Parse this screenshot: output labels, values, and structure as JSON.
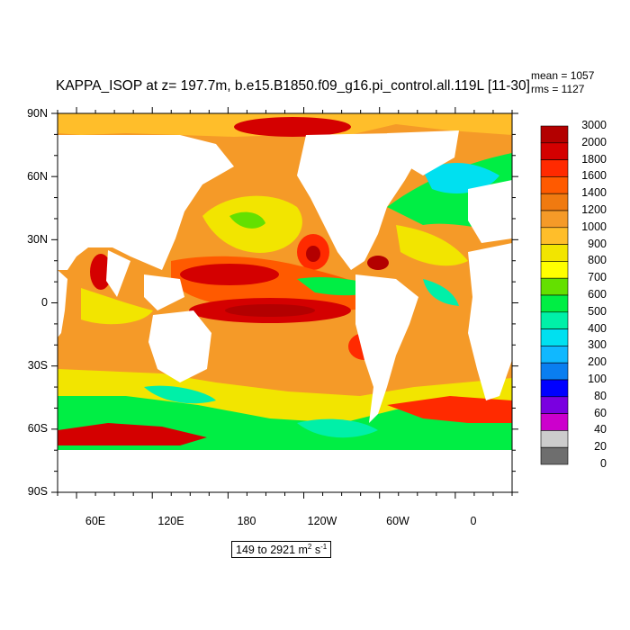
{
  "title": "KAPPA_ISOP at z= 197.7m, b.e15.B1850.f09_g16.pi_control.all.119L [11-30]",
  "stats": {
    "mean": "mean = 1057",
    "rms": "rms = 1127"
  },
  "range_label": {
    "text": "149 to 2921 m",
    "sup1": "2",
    "mid": " s",
    "sup2": "-1"
  },
  "axes": {
    "y_ticks": [
      "90N",
      "60N",
      "30N",
      "0",
      "30S",
      "60S",
      "90S"
    ],
    "x_ticks": [
      "60E",
      "120E",
      "180",
      "120W",
      "60W",
      "0"
    ]
  },
  "colorbar": {
    "labels": [
      "3000",
      "2000",
      "1800",
      "1600",
      "1400",
      "1200",
      "1000",
      "900",
      "800",
      "700",
      "600",
      "500",
      "400",
      "300",
      "200",
      "100",
      "80",
      "60",
      "40",
      "20",
      "0"
    ],
    "colors": [
      "#b30000",
      "#d40000",
      "#ff2a00",
      "#ff5a00",
      "#f07a10",
      "#f59a28",
      "#ffbe2a",
      "#f2e500",
      "#ffff00",
      "#64e000",
      "#00ee44",
      "#00f0a8",
      "#00e0f0",
      "#10b8ff",
      "#0a7ef0",
      "#0000ff",
      "#7a00e0",
      "#cc00cc",
      "#cccccc",
      "#6e6e6e"
    ]
  }
}
